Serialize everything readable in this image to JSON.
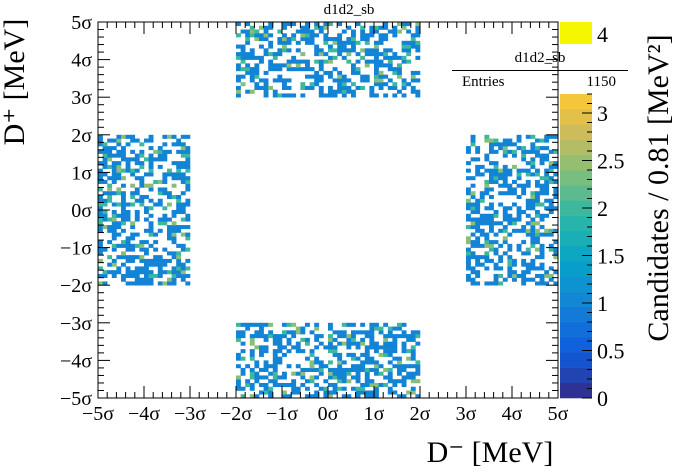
{
  "chart_data": {
    "type": "heatmap",
    "title": "d1d2_sb",
    "xlabel": "D⁻ [MeV]",
    "ylabel": "D⁺ [MeV]",
    "zlabel": "Candidates / 0.81 [MeV²]",
    "x_ticks": [
      "−5σ",
      "−4σ",
      "−3σ",
      "−2σ",
      "−1σ",
      "0σ",
      "1σ",
      "2σ",
      "3σ",
      "4σ",
      "5σ"
    ],
    "y_ticks": [
      "−5σ",
      "−4σ",
      "−3σ",
      "−2σ",
      "−1σ",
      "0σ",
      "1σ",
      "2σ",
      "3σ",
      "4σ",
      "5σ"
    ],
    "z_ticks": [
      "0",
      "0.5",
      "1",
      "1.5",
      "2",
      "2.5",
      "3"
    ],
    "z_overflow_label": "4",
    "xlim": [
      -5,
      5
    ],
    "ylim": [
      -5,
      5
    ],
    "zlim": [
      0,
      3.2
    ],
    "bins_per_sigma": 10,
    "sideband_regions": [
      {
        "name": "top",
        "x": [
          -2,
          2
        ],
        "y": [
          3,
          5
        ]
      },
      {
        "name": "bottom",
        "x": [
          -2,
          2
        ],
        "y": [
          -5,
          -3
        ]
      },
      {
        "name": "left",
        "x": [
          -5,
          -3
        ],
        "y": [
          -2,
          2
        ]
      },
      {
        "name": "right",
        "x": [
          3,
          5
        ],
        "y": [
          -2,
          2
        ]
      }
    ],
    "stats": {
      "name": "d1d2_sb",
      "entries_label": "Entries",
      "entries": "1150"
    }
  }
}
